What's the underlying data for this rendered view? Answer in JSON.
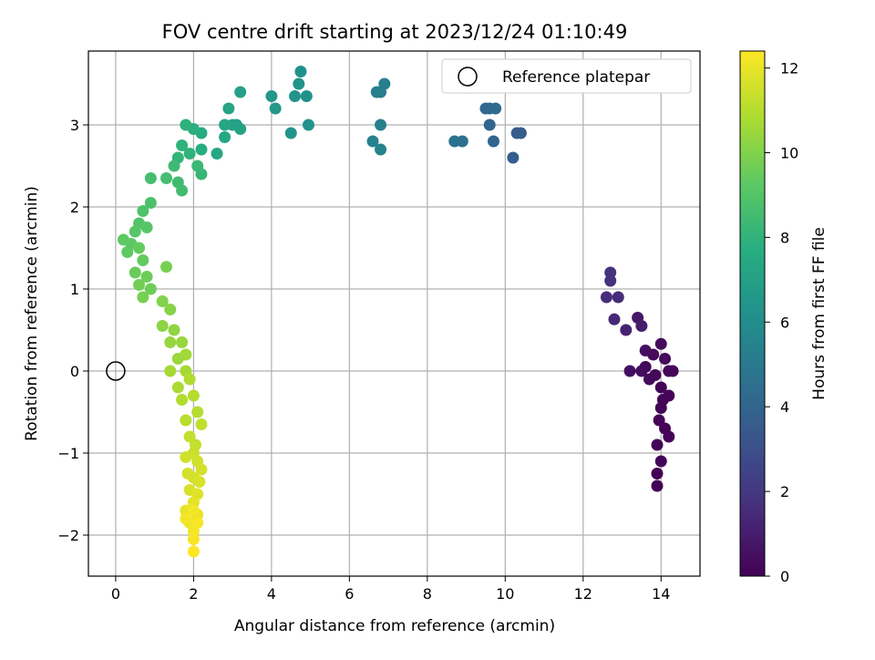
{
  "chart_data": {
    "type": "scatter",
    "title": "FOV centre drift starting at 2023/12/24 01:10:49",
    "xlabel": "Angular distance from reference (arcmin)",
    "ylabel": "Rotation from reference (arcmin)",
    "xlim": [
      -0.7,
      15.0
    ],
    "ylim": [
      -2.5,
      3.9
    ],
    "x_ticks": [
      "0",
      "2",
      "4",
      "6",
      "8",
      "10",
      "12",
      "14"
    ],
    "x_tick_values": [
      0,
      2,
      4,
      6,
      8,
      10,
      12,
      14
    ],
    "y_ticks": [
      "3",
      "2",
      "1",
      "0",
      "−1",
      "−2"
    ],
    "y_tick_values": [
      3,
      2,
      1,
      0,
      -1,
      -2
    ],
    "grid": true,
    "legend": {
      "position": "upper right",
      "entries": [
        "Reference platepar"
      ]
    },
    "reference_point": {
      "x": 0,
      "y": 0,
      "label": "Reference platepar"
    },
    "colorbar": {
      "label": "Hours from first FF file",
      "colormap": "viridis",
      "range": [
        0,
        12.4
      ],
      "ticks": [
        "0",
        "2",
        "4",
        "6",
        "8",
        "10",
        "12"
      ],
      "tick_values": [
        0,
        2,
        4,
        6,
        8,
        10,
        12
      ]
    },
    "series": [
      {
        "points": [
          [
            14.2,
            0.0,
            0.2
          ],
          [
            14.0,
            -0.2,
            0.1
          ],
          [
            13.9,
            -0.9,
            0.1
          ],
          [
            14.0,
            -1.1,
            0.1
          ],
          [
            13.9,
            -1.4,
            0.0
          ],
          [
            13.9,
            -1.25,
            0.0
          ],
          [
            14.1,
            -0.7,
            0.1
          ],
          [
            14.3,
            0.0,
            0.2
          ],
          [
            14.0,
            -0.45,
            0.1
          ],
          [
            13.8,
            0.2,
            0.3
          ],
          [
            14.0,
            0.33,
            0.4
          ],
          [
            13.6,
            0.05,
            0.3
          ],
          [
            13.5,
            0.0,
            0.4
          ],
          [
            13.7,
            -0.1,
            0.3
          ],
          [
            14.2,
            -0.3,
            0.15
          ],
          [
            14.1,
            0.15,
            0.3
          ],
          [
            14.2,
            -0.8,
            0.1
          ],
          [
            13.95,
            -0.6,
            0.1
          ],
          [
            14.05,
            -0.35,
            0.12
          ],
          [
            13.85,
            -0.05,
            0.2
          ],
          [
            13.2,
            0.0,
            0.5
          ],
          [
            13.6,
            0.25,
            0.5
          ],
          [
            13.4,
            0.65,
            0.8
          ],
          [
            13.5,
            0.55,
            1.0
          ],
          [
            13.1,
            0.5,
            1.2
          ],
          [
            12.9,
            0.9,
            1.5
          ],
          [
            12.6,
            0.9,
            1.6
          ],
          [
            12.8,
            0.63,
            1.4
          ],
          [
            12.7,
            1.1,
            1.7
          ],
          [
            12.7,
            1.2,
            1.8
          ],
          [
            10.4,
            2.9,
            3.6
          ],
          [
            10.3,
            2.9,
            3.6
          ],
          [
            10.2,
            2.6,
            3.7
          ],
          [
            9.7,
            2.8,
            4.0
          ],
          [
            9.6,
            3.0,
            4.1
          ],
          [
            9.5,
            3.2,
            4.2
          ],
          [
            9.6,
            3.2,
            4.2
          ],
          [
            9.75,
            3.2,
            4.3
          ],
          [
            8.7,
            2.8,
            4.6
          ],
          [
            8.9,
            2.8,
            4.6
          ],
          [
            6.8,
            3.4,
            5.2
          ],
          [
            6.7,
            3.4,
            5.3
          ],
          [
            6.9,
            3.5,
            5.3
          ],
          [
            6.8,
            3.0,
            5.4
          ],
          [
            6.6,
            2.8,
            5.5
          ],
          [
            6.8,
            2.7,
            5.5
          ],
          [
            4.9,
            3.35,
            6.2
          ],
          [
            4.95,
            3.0,
            6.3
          ],
          [
            4.6,
            3.35,
            6.3
          ],
          [
            4.7,
            3.5,
            6.3
          ],
          [
            4.75,
            3.65,
            6.2
          ],
          [
            4.0,
            3.35,
            6.5
          ],
          [
            4.1,
            3.2,
            6.6
          ],
          [
            4.5,
            2.9,
            6.4
          ],
          [
            3.2,
            3.4,
            7.0
          ],
          [
            3.1,
            3.0,
            7.0
          ],
          [
            3.2,
            2.95,
            7.1
          ],
          [
            3.0,
            3.0,
            7.1
          ],
          [
            2.9,
            3.2,
            7.2
          ],
          [
            2.8,
            3.0,
            7.3
          ],
          [
            2.6,
            2.65,
            7.3
          ],
          [
            2.8,
            2.85,
            7.4
          ],
          [
            2.2,
            2.9,
            7.6
          ],
          [
            2.2,
            2.7,
            7.7
          ],
          [
            2.0,
            2.95,
            7.8
          ],
          [
            1.8,
            3.0,
            7.9
          ],
          [
            1.9,
            2.65,
            8.0
          ],
          [
            1.7,
            2.75,
            8.0
          ],
          [
            1.6,
            2.6,
            8.1
          ],
          [
            2.2,
            2.4,
            8.2
          ],
          [
            2.1,
            2.5,
            8.3
          ],
          [
            1.5,
            2.5,
            8.4
          ],
          [
            1.6,
            2.3,
            8.5
          ],
          [
            1.7,
            2.2,
            8.5
          ],
          [
            1.3,
            2.35,
            8.6
          ],
          [
            0.9,
            2.35,
            8.6
          ],
          [
            0.9,
            2.05,
            8.8
          ],
          [
            0.7,
            1.95,
            8.9
          ],
          [
            0.6,
            1.8,
            9.0
          ],
          [
            0.8,
            1.75,
            9.1
          ],
          [
            0.5,
            1.7,
            9.1
          ],
          [
            0.4,
            1.55,
            9.2
          ],
          [
            0.2,
            1.6,
            9.3
          ],
          [
            0.3,
            1.45,
            9.3
          ],
          [
            0.6,
            1.5,
            9.4
          ],
          [
            0.7,
            1.35,
            9.4
          ],
          [
            0.5,
            1.2,
            9.5
          ],
          [
            0.8,
            1.15,
            9.6
          ],
          [
            0.9,
            1.0,
            9.6
          ],
          [
            0.6,
            1.05,
            9.7
          ],
          [
            0.7,
            0.9,
            9.8
          ],
          [
            1.3,
            1.27,
            9.8
          ],
          [
            1.2,
            0.85,
            10.0
          ],
          [
            1.4,
            0.75,
            10.1
          ],
          [
            1.2,
            0.55,
            10.2
          ],
          [
            1.5,
            0.5,
            10.3
          ],
          [
            1.4,
            0.35,
            10.4
          ],
          [
            1.7,
            0.35,
            10.4
          ],
          [
            1.6,
            0.15,
            10.5
          ],
          [
            1.8,
            0.2,
            10.6
          ],
          [
            1.4,
            0.0,
            10.7
          ],
          [
            1.8,
            0.0,
            10.7
          ],
          [
            1.6,
            -0.2,
            10.8
          ],
          [
            1.9,
            -0.1,
            10.9
          ],
          [
            1.7,
            -0.35,
            10.9
          ],
          [
            2.0,
            -0.3,
            11.0
          ],
          [
            2.1,
            -0.5,
            11.0
          ],
          [
            1.8,
            -0.6,
            11.1
          ],
          [
            2.2,
            -0.65,
            11.2
          ],
          [
            1.9,
            -0.8,
            11.3
          ],
          [
            2.0,
            -1.0,
            11.4
          ],
          [
            1.8,
            -1.05,
            11.5
          ],
          [
            2.1,
            -1.1,
            11.5
          ],
          [
            2.2,
            -1.2,
            11.6
          ],
          [
            2.0,
            -1.3,
            11.6
          ],
          [
            1.9,
            -1.45,
            11.7
          ],
          [
            2.1,
            -1.5,
            11.8
          ],
          [
            2.0,
            -1.6,
            11.9
          ],
          [
            1.8,
            -1.7,
            12.0
          ],
          [
            2.1,
            -1.75,
            12.0
          ],
          [
            1.9,
            -1.85,
            12.1
          ],
          [
            2.0,
            -1.95,
            12.2
          ],
          [
            1.8,
            -1.8,
            12.2
          ],
          [
            2.1,
            -1.85,
            12.3
          ],
          [
            2.0,
            -2.05,
            12.3
          ],
          [
            2.0,
            -2.2,
            12.4
          ],
          [
            2.0,
            -1.7,
            12.2
          ],
          [
            2.15,
            -1.35,
            11.7
          ],
          [
            1.85,
            -1.25,
            11.6
          ],
          [
            2.05,
            -0.9,
            11.3
          ]
        ]
      }
    ]
  }
}
